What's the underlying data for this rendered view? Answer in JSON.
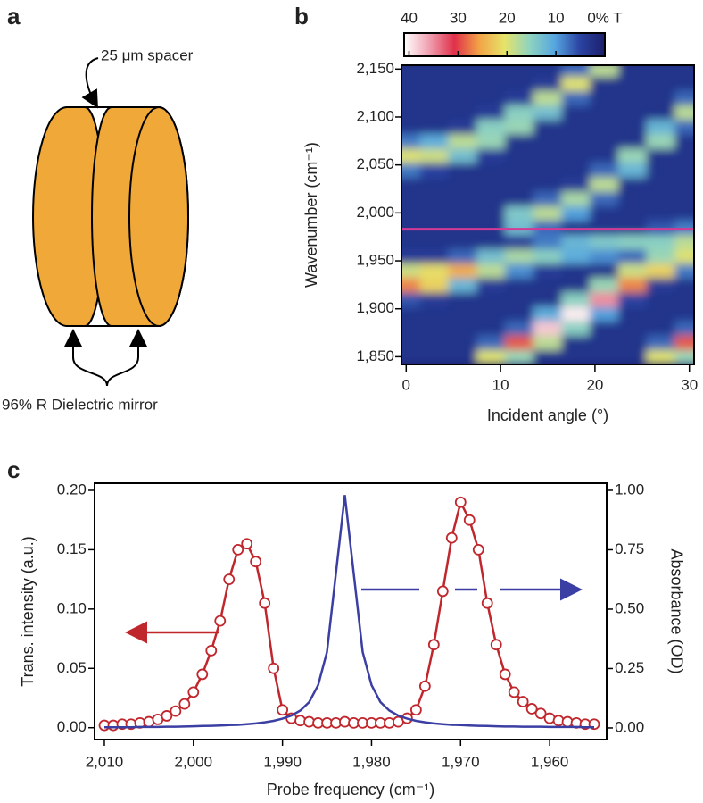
{
  "diagram": {
    "panel_label": "a",
    "spacer_label": "25 μm spacer",
    "mirror_label": "96% R Dielectric mirror"
  },
  "chart_data": [
    {
      "type": "heatmap",
      "panel_label": "b",
      "xlabel": "Incident angle (°)",
      "ylabel": "Wavenumber (cm⁻¹)",
      "x": [
        0,
        3,
        6,
        9,
        12,
        15,
        18,
        21,
        24,
        27,
        30
      ],
      "y": [
        1850,
        1865,
        1880,
        1895,
        1910,
        1925,
        1940,
        1955,
        1970,
        1985,
        2000,
        2015,
        2030,
        2045,
        2060,
        2075,
        2090,
        2105,
        2120,
        2135,
        2150
      ],
      "z": [
        [
          3,
          3,
          3,
          3,
          6,
          27,
          19,
          4,
          3,
          3,
          3,
          3,
          3,
          8,
          20,
          8,
          3,
          3,
          3,
          3,
          3
        ],
        [
          3,
          3,
          3,
          3,
          4,
          22,
          21,
          4,
          3,
          3,
          3,
          3,
          3,
          5,
          19,
          11,
          3,
          3,
          3,
          3,
          3
        ],
        [
          3,
          3,
          3,
          3,
          3,
          12,
          25,
          7,
          3,
          3,
          3,
          3,
          3,
          3,
          13,
          18,
          4,
          3,
          3,
          3,
          3
        ],
        [
          20,
          7,
          3,
          3,
          3,
          4,
          18,
          13,
          3,
          3,
          3,
          3,
          3,
          3,
          4,
          16,
          15,
          4,
          3,
          3,
          3
        ],
        [
          16,
          29,
          7,
          3,
          3,
          3,
          9,
          17,
          4,
          13,
          14,
          3,
          3,
          3,
          3,
          3,
          16,
          15,
          4,
          3,
          3
        ],
        [
          3,
          18,
          38,
          11,
          3,
          3,
          4,
          15,
          8,
          7,
          18,
          7,
          3,
          3,
          3,
          3,
          3,
          13,
          18,
          4,
          3
        ],
        [
          3,
          3,
          15,
          40,
          15,
          3,
          3,
          11,
          12,
          3,
          10,
          17,
          4,
          3,
          3,
          3,
          3,
          3,
          7,
          20,
          7
        ],
        [
          3,
          3,
          3,
          10,
          35,
          16,
          3,
          9,
          14,
          3,
          3,
          7,
          18,
          7,
          3,
          3,
          3,
          3,
          3,
          3,
          18
        ],
        [
          3,
          3,
          3,
          3,
          5,
          27,
          19,
          7,
          15,
          3,
          3,
          3,
          3,
          12,
          16,
          3,
          3,
          3,
          3,
          3,
          3
        ],
        [
          20,
          7,
          3,
          3,
          3,
          4,
          22,
          16,
          15,
          6,
          3,
          3,
          3,
          3,
          3,
          16,
          12,
          3,
          3,
          3,
          3
        ],
        [
          16,
          29,
          7,
          3,
          3,
          3,
          8,
          20,
          18,
          8,
          3,
          3,
          3,
          3,
          3,
          3,
          7,
          18,
          7,
          3,
          3
        ]
      ],
      "xlim": [
        -0.5,
        30.5
      ],
      "ylim": [
        1842,
        2154
      ],
      "xticks": [
        0,
        10,
        20,
        30
      ],
      "yticks": [
        {
          "value": 1850,
          "label": "1,850"
        },
        {
          "value": 1900,
          "label": "1,900"
        },
        {
          "value": 1950,
          "label": "1,950"
        },
        {
          "value": 2000,
          "label": "2,000"
        },
        {
          "value": 2050,
          "label": "2,050"
        },
        {
          "value": 2100,
          "label": "2,100"
        },
        {
          "value": 2150,
          "label": "2,150"
        }
      ],
      "colormap": [
        "#1b1f6b",
        "#2b43a2",
        "#56a6e0",
        "#8fd3c0",
        "#e6e36a",
        "#f2a447",
        "#e0304a",
        "#f0a0b0",
        "#ffffff"
      ],
      "colorbar": {
        "lim": [
          41,
          0
        ],
        "ticks": [
          40,
          30,
          20,
          10,
          {
            "value": 0,
            "label": "0% T"
          }
        ]
      },
      "hline": 1983,
      "hline_color": "#d23a95"
    },
    {
      "type": "line",
      "panel_label": "c",
      "xlabel": "Probe frequency (cm⁻¹)",
      "ylabel": "Trans. intensity (a.u.)",
      "y2label": "Absorbance (OD)",
      "x": [
        2010,
        2009,
        2008,
        2007,
        2006,
        2005,
        2004,
        2003,
        2002,
        2001,
        2000,
        1999,
        1998,
        1997,
        1996,
        1995,
        1994,
        1993,
        1992,
        1991,
        1990,
        1989,
        1988,
        1987,
        1986,
        1985,
        1984,
        1983,
        1982,
        1981,
        1980,
        1979,
        1978,
        1977,
        1976,
        1975,
        1974,
        1973,
        1972,
        1971,
        1970,
        1969,
        1968,
        1967,
        1966,
        1965,
        1964,
        1963,
        1962,
        1961,
        1960,
        1959,
        1958,
        1957,
        1956,
        1955
      ],
      "series": [
        {
          "color": "#c0272d",
          "marker": "circle",
          "values": [
            0.002,
            0.002,
            0.003,
            0.003,
            0.004,
            0.005,
            0.007,
            0.01,
            0.014,
            0.02,
            0.03,
            0.045,
            0.065,
            0.09,
            0.125,
            0.15,
            0.155,
            0.14,
            0.105,
            0.05,
            0.015,
            0.008,
            0.006,
            0.005,
            0.004,
            0.004,
            0.004,
            0.005,
            0.004,
            0.004,
            0.004,
            0.004,
            0.004,
            0.005,
            0.008,
            0.015,
            0.035,
            0.07,
            0.115,
            0.16,
            0.19,
            0.175,
            0.15,
            0.105,
            0.07,
            0.045,
            0.03,
            0.022,
            0.016,
            0.012,
            0.008,
            0.006,
            0.005,
            0.004,
            0.003,
            0.003
          ]
        },
        {
          "color": "#3b3fa3",
          "axis": "y2",
          "values": [
            0.003,
            0.003,
            0.003,
            0.003,
            0.004,
            0.004,
            0.004,
            0.005,
            0.005,
            0.006,
            0.007,
            0.008,
            0.009,
            0.01,
            0.012,
            0.013,
            0.016,
            0.019,
            0.024,
            0.03,
            0.039,
            0.052,
            0.073,
            0.109,
            0.18,
            0.32,
            0.65,
            0.98,
            0.65,
            0.32,
            0.18,
            0.109,
            0.073,
            0.052,
            0.039,
            0.03,
            0.024,
            0.019,
            0.016,
            0.013,
            0.012,
            0.01,
            0.009,
            0.008,
            0.007,
            0.006,
            0.006,
            0.005,
            0.005,
            0.005,
            0.004,
            0.004,
            0.004,
            0.004,
            0.003,
            0.003
          ]
        }
      ],
      "xlim": [
        2011.1,
        1953.6
      ],
      "ylim": [
        -0.01,
        0.206
      ],
      "y2lim": [
        -0.049,
        1.03
      ],
      "xticks": [
        {
          "value": 2010,
          "label": "2,010"
        },
        {
          "value": 2000,
          "label": "2,000"
        },
        {
          "value": 1990,
          "label": "1,990"
        },
        {
          "value": 1980,
          "label": "1,980"
        },
        {
          "value": 1970,
          "label": "1,970"
        },
        {
          "value": 1960,
          "label": "1,960"
        }
      ],
      "yticks": [
        {
          "value": 0,
          "label": "0.00"
        },
        {
          "value": 0.05,
          "label": "0.05"
        },
        {
          "value": 0.1,
          "label": "0.10"
        },
        {
          "value": 0.15,
          "label": "0.15"
        },
        {
          "value": 0.2,
          "label": "0.20"
        }
      ],
      "y2ticks": [
        {
          "value": 0,
          "label": "0.00"
        },
        {
          "value": 0.25,
          "label": "0.25"
        },
        {
          "value": 0.5,
          "label": "0.50"
        },
        {
          "value": 0.75,
          "label": "0.75"
        },
        {
          "value": 1,
          "label": "1.00"
        }
      ]
    }
  ]
}
